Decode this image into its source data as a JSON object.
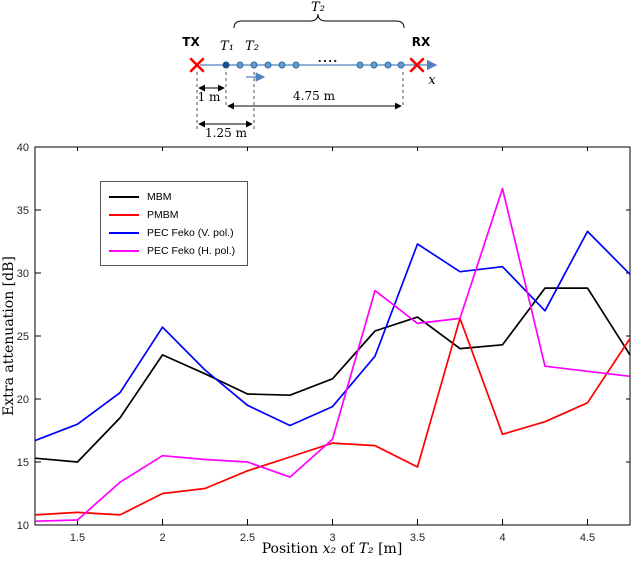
{
  "diagram": {
    "tx_label": "TX",
    "rx_label": "RX",
    "t1_label": "T₁",
    "t2_label": "T₂",
    "t2_brace_label": "T₂",
    "dots_ellipsis": "....",
    "x_axis_label": "x",
    "dist_tx_t1": "1 m",
    "dist_t1_rx": "4.75 m",
    "dist_tx_t2": "1.25 m"
  },
  "chart_data": {
    "type": "line",
    "title": "",
    "xlabel": "Position x₂ of T₂ [m]",
    "xlabel_parts": [
      "Position ",
      "x₂",
      " of ",
      "T₂",
      " [m]"
    ],
    "ylabel": "Extra attenuation [dB]",
    "xlim": [
      1.25,
      4.75
    ],
    "ylim": [
      10,
      40
    ],
    "grid": false,
    "legend_position": "top-left",
    "xticks": [
      1.5,
      2,
      2.5,
      3,
      3.5,
      4,
      4.5
    ],
    "xtick_labels": [
      "1.5",
      "2",
      "2.5",
      "3",
      "3.5",
      "4",
      "4.5"
    ],
    "yticks": [
      10,
      15,
      20,
      25,
      30,
      35,
      40
    ],
    "ytick_labels": [
      "10",
      "15",
      "20",
      "25",
      "30",
      "35",
      "40"
    ],
    "x": [
      1.25,
      1.5,
      1.75,
      2.0,
      2.25,
      2.5,
      2.75,
      3.0,
      3.25,
      3.5,
      3.75,
      4.0,
      4.25,
      4.5,
      4.75
    ],
    "series": [
      {
        "name": "MBM",
        "color": "#000000",
        "values": [
          15.3,
          15.0,
          18.5,
          23.5,
          22.0,
          20.4,
          20.3,
          21.6,
          25.4,
          26.5,
          24.0,
          24.3,
          28.8,
          28.8,
          23.5
        ]
      },
      {
        "name": "PMBM",
        "color": "#ff0000",
        "values": [
          10.8,
          11.0,
          10.8,
          12.5,
          12.9,
          14.3,
          15.4,
          16.5,
          16.3,
          14.6,
          26.4,
          17.2,
          18.2,
          19.7,
          24.8
        ]
      },
      {
        "name": "PEC Feko (V. pol.)",
        "color": "#0000ff",
        "values": [
          16.7,
          18.0,
          20.5,
          25.7,
          22.3,
          19.5,
          17.9,
          19.4,
          23.4,
          32.3,
          30.1,
          30.5,
          27.0,
          33.3,
          29.9
        ]
      },
      {
        "name": "PEC Feko (H. pol.)",
        "color": "#ff00ff",
        "values": [
          10.3,
          10.4,
          13.4,
          15.5,
          15.2,
          15.0,
          13.8,
          16.8,
          28.6,
          26.0,
          26.4,
          36.7,
          22.6,
          22.2,
          21.8
        ]
      }
    ]
  }
}
